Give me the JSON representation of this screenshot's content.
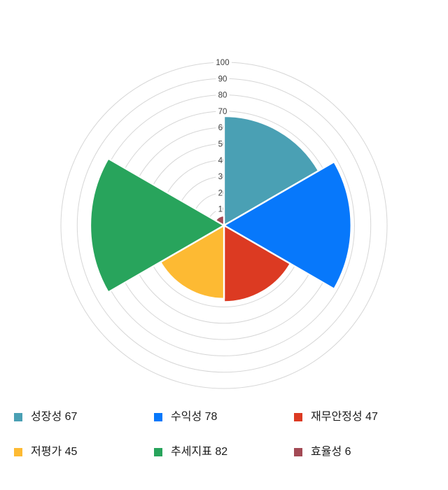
{
  "chart_data": {
    "type": "polar-area",
    "title": "",
    "categories": [
      "성장성",
      "수익성",
      "재무안정성",
      "저평가",
      "추세지표",
      "효율성"
    ],
    "values": [
      67,
      78,
      47,
      45,
      82,
      6
    ],
    "colors": [
      "#4AA0B4",
      "#0778FB",
      "#DC3A22",
      "#FDBA33",
      "#28A45C",
      "#A34A55"
    ],
    "axis_ticks": [
      "100",
      "90",
      "80",
      "70",
      "60",
      "50",
      "40",
      "30",
      "20",
      "10"
    ],
    "rmax": 100,
    "sector_width_deg": 60,
    "start_from": "top",
    "direction": "clockwise",
    "grid": true,
    "gridline_color": "#d6d6d6",
    "tick_label_color": "#3c3c3c",
    "sector_border_color": "#ffffff",
    "legend_position": "bottom"
  },
  "legend": {
    "items": [
      {
        "label": "성장성 67",
        "color": "#4AA0B4"
      },
      {
        "label": "수익성 78",
        "color": "#0778FB"
      },
      {
        "label": "재무안정성 47",
        "color": "#DC3A22"
      },
      {
        "label": "저평가 45",
        "color": "#FDBA33"
      },
      {
        "label": "추세지표 82",
        "color": "#28A45C"
      },
      {
        "label": "효율성 6",
        "color": "#A34A55"
      }
    ]
  }
}
